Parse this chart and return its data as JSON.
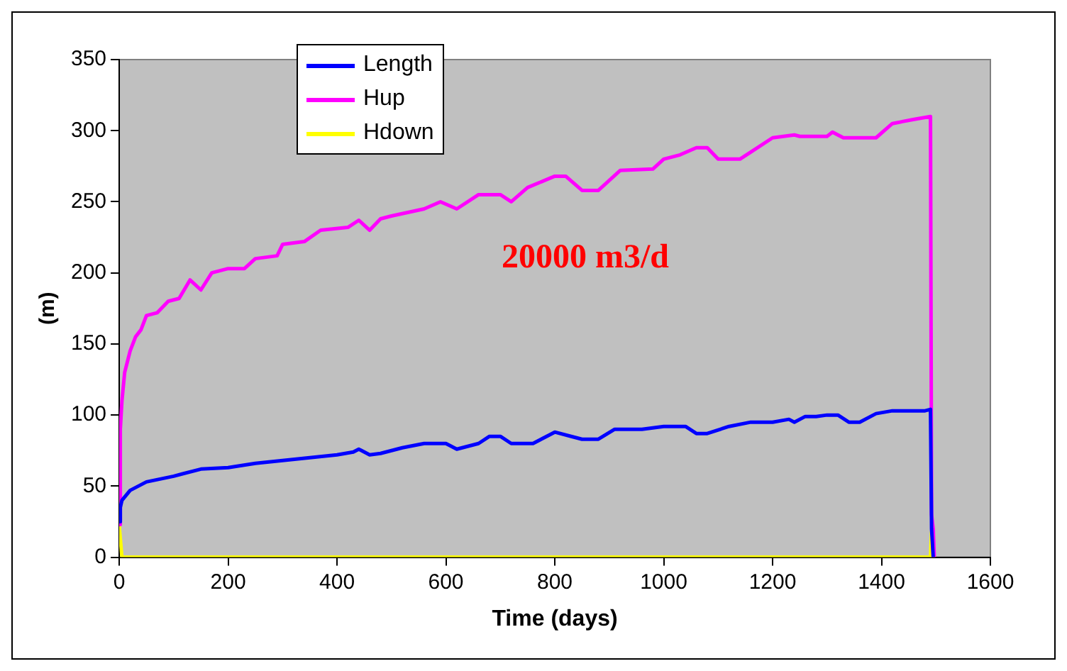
{
  "chart_data": {
    "type": "line",
    "xlabel": "Time (days)",
    "ylabel": "(m)",
    "xlim": [
      0,
      1600
    ],
    "xticks": [
      0,
      200,
      400,
      600,
      800,
      1000,
      1200,
      1400,
      1600
    ],
    "ylim": [
      0,
      350
    ],
    "yticks": [
      0,
      50,
      100,
      150,
      200,
      250,
      300,
      350
    ],
    "grid": false,
    "legend": "top left",
    "marker": "none",
    "line_style": "solid",
    "annotations": [
      "20000 m3/d"
    ],
    "series": [
      {
        "name": "Length",
        "color": "#0000ff",
        "x": [
          0,
          2,
          5,
          20,
          50,
          100,
          150,
          200,
          250,
          300,
          350,
          400,
          430,
          440,
          460,
          480,
          520,
          560,
          600,
          620,
          660,
          680,
          700,
          720,
          760,
          790,
          800,
          830,
          850,
          880,
          910,
          960,
          1000,
          1040,
          1060,
          1080,
          1120,
          1160,
          1200,
          1230,
          1240,
          1260,
          1280,
          1300,
          1320,
          1340,
          1360,
          1390,
          1420,
          1480,
          1490,
          1492,
          1495
        ],
        "values": [
          25,
          35,
          40,
          47,
          53,
          57,
          62,
          63,
          66,
          68,
          70,
          72,
          74,
          76,
          72,
          73,
          77,
          80,
          80,
          76,
          80,
          85,
          85,
          80,
          80,
          86,
          88,
          85,
          83,
          83,
          90,
          90,
          92,
          92,
          87,
          87,
          92,
          95,
          95,
          97,
          95,
          99,
          99,
          100,
          100,
          95,
          95,
          101,
          103,
          103,
          104,
          20,
          0
        ]
      },
      {
        "name": "Hup",
        "color": "#ff00ff",
        "x": [
          0,
          2,
          5,
          10,
          20,
          30,
          40,
          50,
          70,
          90,
          110,
          130,
          150,
          170,
          200,
          230,
          250,
          290,
          300,
          340,
          370,
          420,
          440,
          460,
          480,
          500,
          560,
          590,
          620,
          660,
          700,
          720,
          750,
          800,
          820,
          850,
          880,
          920,
          980,
          1000,
          1030,
          1060,
          1080,
          1100,
          1140,
          1160,
          1200,
          1240,
          1250,
          1300,
          1310,
          1330,
          1390,
          1420,
          1460,
          1490,
          1492,
          1495,
          1497
        ],
        "values": [
          23,
          90,
          110,
          130,
          145,
          155,
          160,
          170,
          172,
          180,
          182,
          195,
          188,
          200,
          203,
          203,
          210,
          212,
          220,
          222,
          230,
          232,
          237,
          230,
          238,
          240,
          245,
          250,
          245,
          255,
          255,
          250,
          260,
          268,
          268,
          258,
          258,
          272,
          273,
          280,
          283,
          288,
          288,
          280,
          280,
          285,
          295,
          297,
          296,
          296,
          299,
          295,
          295,
          305,
          308,
          310,
          30,
          20,
          0
        ]
      },
      {
        "name": "Hdown",
        "color": "#ffff00",
        "x": [
          0,
          5,
          1490,
          1492,
          1497
        ],
        "values": [
          22,
          0,
          0,
          18,
          0
        ]
      }
    ]
  }
}
